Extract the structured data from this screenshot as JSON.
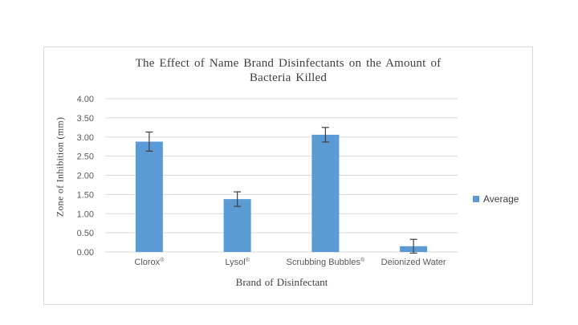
{
  "frame": {
    "border_color": "#d9d9d9",
    "background": "#ffffff"
  },
  "chart_data": {
    "type": "bar",
    "title": "The Effect of Name Brand Disinfectants on the Amount of Bacteria Killed",
    "title_lines": [
      "The Effect of Name Brand Disinfectants on the Amount of",
      "Bacteria Killed"
    ],
    "xlabel": "Brand of Disinfectant",
    "ylabel": "Zone of Inhibition (mm)",
    "categories": [
      "Clorox®",
      "Lysol®",
      "Scrubbing Bubbles®",
      "Deionized Water"
    ],
    "series": [
      {
        "name": "Average",
        "values": [
          2.88,
          1.38,
          3.06,
          0.15
        ],
        "error_bars": [
          0.25,
          0.19,
          0.19,
          0.18
        ]
      }
    ],
    "ylim": [
      0,
      4
    ],
    "ytick_step": 0.5,
    "ytick_labels": [
      "0.00",
      "0.50",
      "1.00",
      "1.50",
      "2.00",
      "2.50",
      "3.00",
      "3.50",
      "4.00"
    ],
    "grid": true,
    "legend_position": "right",
    "colors": {
      "bar": "#5B9BD5",
      "gridline": "#d9d9d9",
      "error_bar": "#404040",
      "tick_text": "#595959",
      "category_text": "#595959",
      "title_text": "#404040"
    }
  }
}
